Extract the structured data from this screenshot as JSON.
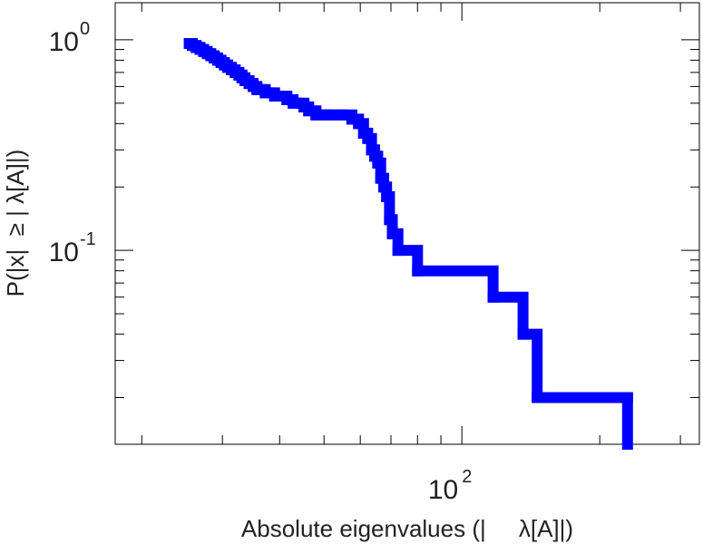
{
  "chart_data": {
    "type": "line",
    "step": true,
    "title": "",
    "xlabel": "Absolute eigenvalues (|     λ[A]|)",
    "ylabel": "P(|x|  ≥ | λ[A]|)",
    "xscale": "log",
    "yscale": "log",
    "xlim": [
      17.5,
      330
    ],
    "ylim": [
      0.012,
      1.5
    ],
    "grid": false,
    "legend": "none",
    "x_ticks": [
      {
        "value": 100,
        "base": "10",
        "exp": "2"
      }
    ],
    "y_ticks": [
      {
        "value": 1,
        "base": "10",
        "exp": "0"
      },
      {
        "value": 0.1,
        "base": "10",
        "exp": "-1"
      }
    ],
    "series": [
      {
        "color": "#0000ff",
        "x": [
          25.4,
          25.8,
          26.3,
          26.8,
          27.3,
          27.8,
          28.3,
          28.8,
          29.3,
          29.8,
          30.3,
          30.8,
          31.4,
          32.0,
          32.6,
          33.1,
          33.6,
          34.3,
          35.0,
          35.7,
          36.4,
          37.2,
          38.0,
          39.0,
          40.2,
          41.5,
          42.8,
          44.0,
          45.2,
          46.3,
          48.0,
          50.1,
          52.5,
          55.0,
          57.5,
          59.5,
          61.0,
          62.3,
          63.5,
          64.5,
          65.5,
          66.5,
          67.5,
          68.5,
          69.5,
          70.5,
          72.5,
          80.0,
          117.0,
          136.0,
          146.0,
          230.0
        ],
        "y": [
          0.96,
          0.94,
          0.92,
          0.9,
          0.88,
          0.86,
          0.84,
          0.82,
          0.8,
          0.78,
          0.76,
          0.74,
          0.72,
          0.7,
          0.68,
          0.66,
          0.64,
          0.62,
          0.6,
          0.58,
          0.58,
          0.56,
          0.56,
          0.54,
          0.54,
          0.52,
          0.5,
          0.5,
          0.48,
          0.46,
          0.44,
          0.44,
          0.44,
          0.44,
          0.42,
          0.4,
          0.36,
          0.34,
          0.3,
          0.28,
          0.26,
          0.22,
          0.2,
          0.18,
          0.14,
          0.12,
          0.1,
          0.08,
          0.06,
          0.04,
          0.02,
          0.02
        ]
      }
    ]
  }
}
